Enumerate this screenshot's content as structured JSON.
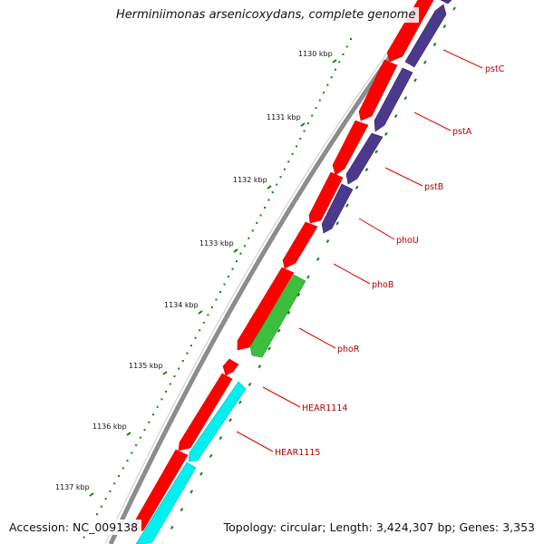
{
  "title": "Herminiimonas arsenicoxydans, complete genome",
  "footer": {
    "accession": "Accession: NC_009138",
    "topology": "Topology: circular; Length: 3,424,307 bp; Genes: 3,353"
  },
  "colors": {
    "backbone": "#8c8c8c",
    "forward_cds": "#ff0000",
    "reverse_cds": "#4b3a8c",
    "green_cds": "#3cbf3c",
    "cyan_cds": "#00f0f0",
    "tick": "#1a7a1a",
    "label_line": "#dd0000"
  },
  "scale_labels": [
    "1130 kbp",
    "1131 kbp",
    "1132 kbp",
    "1133 kbp",
    "1134 kbp",
    "1135 kbp",
    "1136 kbp",
    "1137 kbp"
  ],
  "gene_labels": [
    "pstC",
    "pstA",
    "pstB",
    "phoU",
    "phoB",
    "phoR",
    "HEAR1114",
    "HEAR1115"
  ]
}
